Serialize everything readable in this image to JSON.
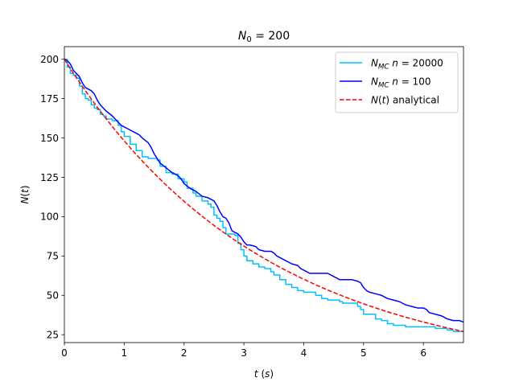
{
  "chart_data": {
    "type": "line",
    "title": "N_0 = 200",
    "xlabel": "t (s)",
    "ylabel": "N(t)",
    "xlim": [
      0,
      6.67
    ],
    "ylim": [
      20,
      208
    ],
    "xticks": [
      0,
      1,
      2,
      3,
      4,
      5,
      6
    ],
    "yticks": [
      25,
      50,
      75,
      100,
      125,
      150,
      175,
      200
    ],
    "grid": false,
    "legend_position": "top-right",
    "series": [
      {
        "name": "N_MC n = 20000",
        "color": "#00bfff",
        "style": "solid",
        "step": true,
        "points": [
          [
            0,
            200
          ],
          [
            0.05,
            195
          ],
          [
            0.1,
            191
          ],
          [
            0.15,
            190
          ],
          [
            0.2,
            188
          ],
          [
            0.25,
            183
          ],
          [
            0.3,
            178
          ],
          [
            0.35,
            175
          ],
          [
            0.4,
            174
          ],
          [
            0.45,
            171
          ],
          [
            0.5,
            169
          ],
          [
            0.55,
            168
          ],
          [
            0.6,
            165
          ],
          [
            0.65,
            164
          ],
          [
            0.7,
            162
          ],
          [
            0.8,
            161
          ],
          [
            0.9,
            158
          ],
          [
            0.95,
            154
          ],
          [
            1.0,
            151
          ],
          [
            1.1,
            146
          ],
          [
            1.2,
            142
          ],
          [
            1.3,
            138
          ],
          [
            1.4,
            137
          ],
          [
            1.5,
            137
          ],
          [
            1.55,
            136
          ],
          [
            1.6,
            132
          ],
          [
            1.7,
            128
          ],
          [
            1.8,
            127
          ],
          [
            1.9,
            124
          ],
          [
            2.0,
            122
          ],
          [
            2.05,
            118
          ],
          [
            2.15,
            115
          ],
          [
            2.2,
            113
          ],
          [
            2.3,
            110
          ],
          [
            2.4,
            108
          ],
          [
            2.45,
            106
          ],
          [
            2.5,
            101
          ],
          [
            2.55,
            99
          ],
          [
            2.6,
            97
          ],
          [
            2.65,
            93
          ],
          [
            2.7,
            89
          ],
          [
            2.8,
            89
          ],
          [
            2.85,
            88
          ],
          [
            2.9,
            83
          ],
          [
            2.95,
            79
          ],
          [
            3.0,
            75
          ],
          [
            3.05,
            72
          ],
          [
            3.15,
            70
          ],
          [
            3.25,
            68
          ],
          [
            3.35,
            67
          ],
          [
            3.45,
            65
          ],
          [
            3.5,
            63
          ],
          [
            3.6,
            60
          ],
          [
            3.7,
            57
          ],
          [
            3.8,
            55
          ],
          [
            3.9,
            53
          ],
          [
            4.0,
            52
          ],
          [
            4.2,
            50
          ],
          [
            4.3,
            48
          ],
          [
            4.4,
            47
          ],
          [
            4.6,
            46
          ],
          [
            4.65,
            45
          ],
          [
            4.9,
            43
          ],
          [
            4.95,
            41
          ],
          [
            5.0,
            38
          ],
          [
            5.2,
            35
          ],
          [
            5.3,
            34
          ],
          [
            5.4,
            32
          ],
          [
            5.5,
            31
          ],
          [
            5.7,
            30
          ],
          [
            6.0,
            30
          ],
          [
            6.2,
            29
          ],
          [
            6.4,
            28
          ],
          [
            6.5,
            27
          ],
          [
            6.67,
            27
          ]
        ]
      },
      {
        "name": "N_MC n = 100",
        "color": "#0000ff",
        "style": "solid",
        "step": false,
        "points": [
          [
            0,
            200
          ],
          [
            0.05,
            199
          ],
          [
            0.1,
            197
          ],
          [
            0.15,
            193
          ],
          [
            0.2,
            191
          ],
          [
            0.25,
            189
          ],
          [
            0.3,
            185
          ],
          [
            0.35,
            182
          ],
          [
            0.4,
            181
          ],
          [
            0.45,
            180
          ],
          [
            0.5,
            178
          ],
          [
            0.55,
            174
          ],
          [
            0.6,
            171
          ],
          [
            0.65,
            169
          ],
          [
            0.7,
            167
          ],
          [
            0.8,
            164
          ],
          [
            0.9,
            160
          ],
          [
            0.95,
            158
          ],
          [
            1.0,
            157
          ],
          [
            1.1,
            155
          ],
          [
            1.15,
            154
          ],
          [
            1.2,
            153
          ],
          [
            1.25,
            152
          ],
          [
            1.3,
            150
          ],
          [
            1.4,
            147
          ],
          [
            1.45,
            144
          ],
          [
            1.5,
            140
          ],
          [
            1.55,
            137
          ],
          [
            1.6,
            134
          ],
          [
            1.7,
            131
          ],
          [
            1.8,
            128
          ],
          [
            1.9,
            126
          ],
          [
            1.95,
            124
          ],
          [
            2.0,
            121
          ],
          [
            2.1,
            118
          ],
          [
            2.2,
            116
          ],
          [
            2.3,
            113
          ],
          [
            2.4,
            112
          ],
          [
            2.5,
            110
          ],
          [
            2.55,
            107
          ],
          [
            2.6,
            103
          ],
          [
            2.65,
            100
          ],
          [
            2.7,
            99
          ],
          [
            2.75,
            96
          ],
          [
            2.8,
            91
          ],
          [
            2.9,
            89
          ],
          [
            2.95,
            87
          ],
          [
            3.0,
            84
          ],
          [
            3.05,
            82
          ],
          [
            3.1,
            82
          ],
          [
            3.2,
            81
          ],
          [
            3.25,
            79
          ],
          [
            3.35,
            78
          ],
          [
            3.45,
            78
          ],
          [
            3.5,
            77
          ],
          [
            3.55,
            75
          ],
          [
            3.6,
            74
          ],
          [
            3.7,
            72
          ],
          [
            3.8,
            70
          ],
          [
            3.9,
            69
          ],
          [
            3.95,
            67
          ],
          [
            4.0,
            66
          ],
          [
            4.1,
            64
          ],
          [
            4.2,
            64
          ],
          [
            4.4,
            64
          ],
          [
            4.45,
            63
          ],
          [
            4.6,
            60
          ],
          [
            4.7,
            60
          ],
          [
            4.8,
            60
          ],
          [
            4.9,
            59
          ],
          [
            4.95,
            58
          ],
          [
            5.0,
            55
          ],
          [
            5.05,
            53
          ],
          [
            5.1,
            52
          ],
          [
            5.2,
            51
          ],
          [
            5.3,
            50
          ],
          [
            5.4,
            48
          ],
          [
            5.5,
            47
          ],
          [
            5.6,
            46
          ],
          [
            5.7,
            44
          ],
          [
            5.8,
            43
          ],
          [
            5.9,
            42
          ],
          [
            6.0,
            42
          ],
          [
            6.05,
            41
          ],
          [
            6.1,
            39
          ],
          [
            6.2,
            38
          ],
          [
            6.3,
            37
          ],
          [
            6.4,
            35
          ],
          [
            6.5,
            34
          ],
          [
            6.6,
            34
          ],
          [
            6.67,
            33
          ]
        ]
      },
      {
        "name": "N(t) analytical",
        "color": "#ff0000",
        "style": "dashed",
        "function": "200*exp(-0.3*t)"
      }
    ]
  }
}
